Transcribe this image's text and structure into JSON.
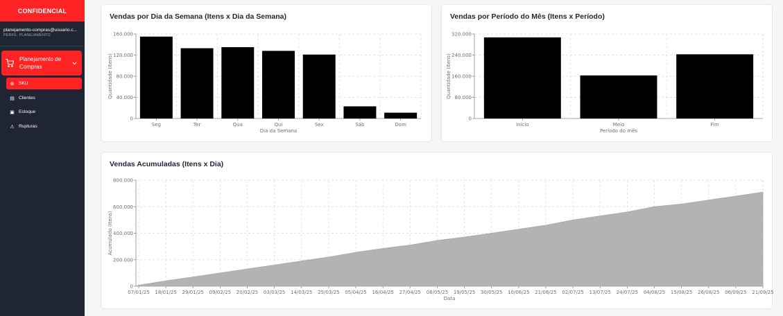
{
  "sidebar": {
    "brand": "CONFIDENCIAL",
    "user_email": "planejamento-compras@usuario.c...",
    "user_profile": "PERFIL: PLANEJAMENTO",
    "main_menu": "Planejamento de Compras",
    "items": [
      {
        "label": "SKU",
        "icon": "tag-icon"
      },
      {
        "label": "Clientes",
        "icon": "document-icon"
      },
      {
        "label": "Estoque",
        "icon": "box-icon"
      },
      {
        "label": "Rupturas",
        "icon": "warning-icon"
      }
    ],
    "accent": "#ff2323",
    "background": "#1f2532"
  },
  "chart_data": [
    {
      "type": "bar",
      "title": "Vendas por Dia da Semana (Itens x Dia da Semana)",
      "xlabel": "Dia da Semana",
      "ylabel": "Quantidade (Itens)",
      "categories": [
        "Seg",
        "Ter",
        "Qua",
        "Qui",
        "Sex",
        "Sáb",
        "Dom"
      ],
      "values": [
        155000,
        133000,
        135000,
        128000,
        121000,
        23000,
        11000
      ],
      "ylim": [
        0,
        160000
      ],
      "yticks": [
        0,
        40000,
        80000,
        120000,
        160000
      ],
      "ytick_labels": [
        "0",
        "40.000",
        "80.000",
        "120.000",
        "160.000"
      ],
      "grid": true,
      "color": "#000000"
    },
    {
      "type": "bar",
      "title": "Vendas por Período do Mês (Itens x Período)",
      "xlabel": "Período do mês",
      "ylabel": "Quantidade (Itens)",
      "categories": [
        "Início",
        "Meio",
        "Fim"
      ],
      "values": [
        307000,
        163000,
        243000
      ],
      "ylim": [
        0,
        320000
      ],
      "yticks": [
        0,
        80000,
        160000,
        240000,
        320000
      ],
      "ytick_labels": [
        "0",
        "80.000",
        "160.000",
        "240.000",
        "320.000"
      ],
      "grid": true,
      "color": "#000000"
    },
    {
      "type": "area",
      "title": "Vendas Acumuladas (Itens x Dia)",
      "xlabel": "Data",
      "ylabel": "Acumulado (Itens)",
      "xtick_labels": [
        "07/01/25",
        "18/01/25",
        "29/01/25",
        "09/02/25",
        "20/02/25",
        "03/03/25",
        "14/03/25",
        "25/03/25",
        "05/04/25",
        "16/04/25",
        "27/04/25",
        "08/05/25",
        "19/05/25",
        "30/05/25",
        "10/06/25",
        "21/06/25",
        "02/07/25",
        "13/07/25",
        "24/07/25",
        "04/08/25",
        "15/08/25",
        "26/08/25",
        "06/09/25",
        "21/09/25"
      ],
      "x": [
        "07/01/25",
        "18/01/25",
        "29/01/25",
        "09/02/25",
        "20/02/25",
        "03/03/25",
        "14/03/25",
        "25/03/25",
        "05/04/25",
        "16/04/25",
        "27/04/25",
        "08/05/25",
        "19/05/25",
        "30/05/25",
        "10/06/25",
        "21/06/25",
        "02/07/25",
        "13/07/25",
        "24/07/25",
        "04/08/25",
        "15/08/25",
        "26/08/25",
        "06/09/25",
        "21/09/25"
      ],
      "values": [
        8000,
        40000,
        70000,
        100000,
        130000,
        160000,
        190000,
        220000,
        255000,
        285000,
        310000,
        345000,
        370000,
        400000,
        430000,
        460000,
        500000,
        530000,
        560000,
        600000,
        620000,
        650000,
        680000,
        710000
      ],
      "ylim": [
        0,
        800000
      ],
      "yticks": [
        0,
        200000,
        400000,
        600000,
        800000
      ],
      "ytick_labels": [
        "0",
        "200.000",
        "400.000",
        "600.000",
        "800.000"
      ],
      "grid": true,
      "color": "#b3b3b3"
    }
  ]
}
